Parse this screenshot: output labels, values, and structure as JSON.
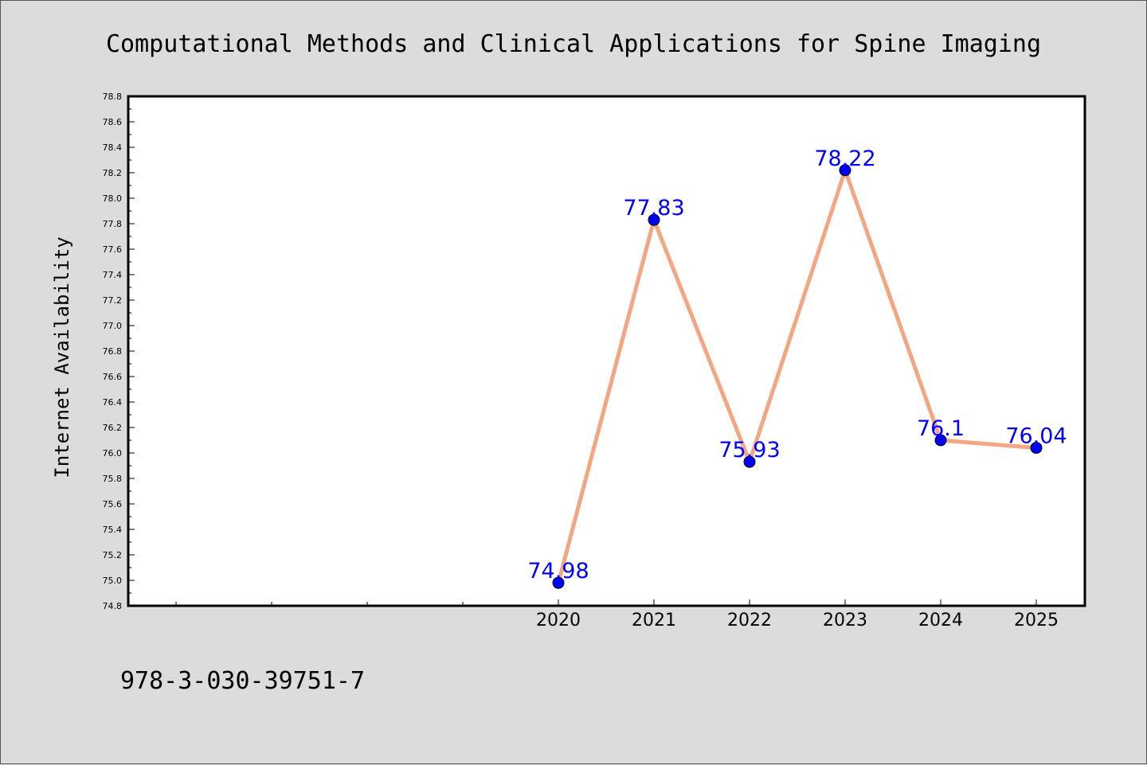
{
  "chart_data": {
    "type": "line",
    "title": "Computational Methods and Clinical Applications for Spine Imaging",
    "ylabel": "Internet Availability",
    "xlabel": "",
    "categories": [
      "2020",
      "2021",
      "2022",
      "2023",
      "2024",
      "2025"
    ],
    "series": [
      {
        "values": [
          74.98,
          77.83,
          75.93,
          78.22,
          76.1,
          76.04
        ],
        "data_labels": [
          "74.98",
          "77.83",
          "75.93",
          "78.22",
          "76.1",
          "76.04"
        ]
      }
    ],
    "ylim": [
      74.8,
      78.8
    ],
    "yticks": [
      "74.8",
      "75.0",
      "75.2",
      "75.4",
      "75.6",
      "75.8",
      "76.0",
      "76.2",
      "76.4",
      "76.6",
      "76.8",
      "77.0",
      "77.2",
      "77.4",
      "77.6",
      "77.8",
      "78.0",
      "78.2",
      "78.4",
      "78.6",
      "78.8"
    ],
    "grid": false,
    "line_color": "#f4a582",
    "marker_color": "#0000ff",
    "label_color": "#0000ff"
  },
  "footer": {
    "isbn": "978-3-030-39751-7"
  }
}
